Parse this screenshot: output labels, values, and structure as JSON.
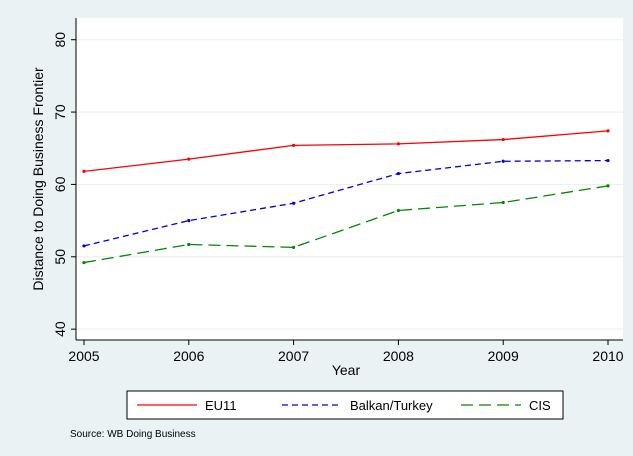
{
  "chart_data": {
    "type": "line",
    "title": "",
    "xlabel": "Year",
    "ylabel": "Distance to Doing Business Frontier",
    "x": [
      2005,
      2006,
      2007,
      2008,
      2009,
      2010
    ],
    "xlim": [
      2005,
      2010
    ],
    "ylim": [
      38.5,
      83
    ],
    "xticks": [
      "2005",
      "2006",
      "2007",
      "2008",
      "2009",
      "2010"
    ],
    "yticks": [
      40,
      50,
      60,
      70,
      80
    ],
    "grid": true,
    "legend_position": "bottom",
    "series": [
      {
        "name": "EU11",
        "color": "#ff0000",
        "dash": "solid",
        "values": [
          61.8,
          63.5,
          65.4,
          65.6,
          66.2,
          67.4
        ]
      },
      {
        "name": "Balkan/Turkey",
        "color": "#0000dd",
        "dash": "dashed",
        "values": [
          51.5,
          55.0,
          57.4,
          61.5,
          63.2,
          63.3
        ]
      },
      {
        "name": "CIS",
        "color": "#008800",
        "dash": "longdash",
        "values": [
          49.2,
          51.7,
          51.3,
          56.4,
          57.5,
          59.8
        ]
      }
    ]
  },
  "source_note": "Source: WB Doing Business"
}
